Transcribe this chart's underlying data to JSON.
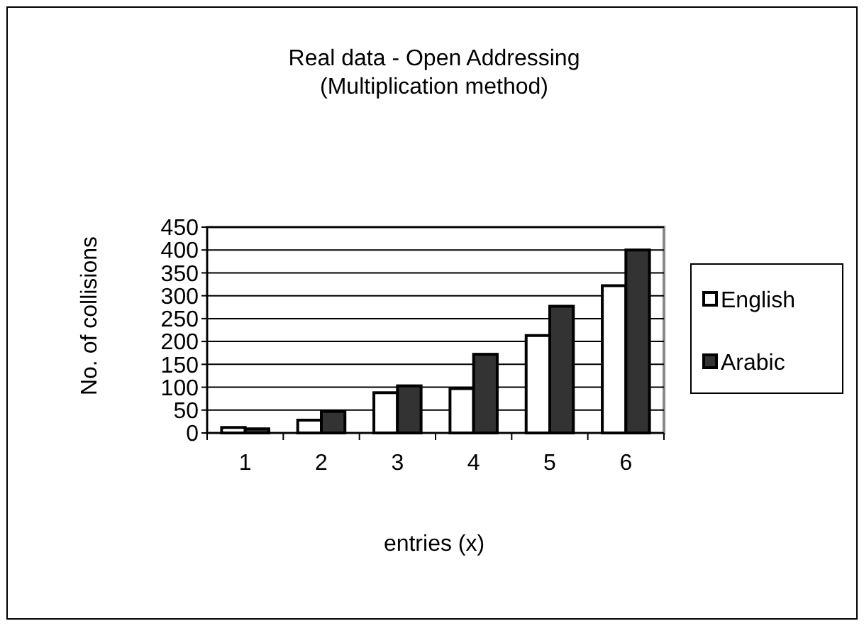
{
  "chart_data": {
    "type": "bar",
    "title": "Real data - Open Addressing\n(Multiplication method)",
    "xlabel": "entries (x)",
    "ylabel": "No. of collisions",
    "categories": [
      "1",
      "2",
      "3",
      "4",
      "5",
      "6"
    ],
    "series": [
      {
        "name": "English",
        "color": "#ffffff",
        "values": [
          12,
          28,
          88,
          97,
          213,
          322
        ]
      },
      {
        "name": "Arabic",
        "color": "#333333",
        "values": [
          9,
          47,
          103,
          172,
          277,
          400
        ]
      }
    ],
    "ylim": [
      0,
      450
    ],
    "yticks": [
      0,
      50,
      100,
      150,
      200,
      250,
      300,
      350,
      400,
      450
    ],
    "grid": "y",
    "legend": "right"
  }
}
